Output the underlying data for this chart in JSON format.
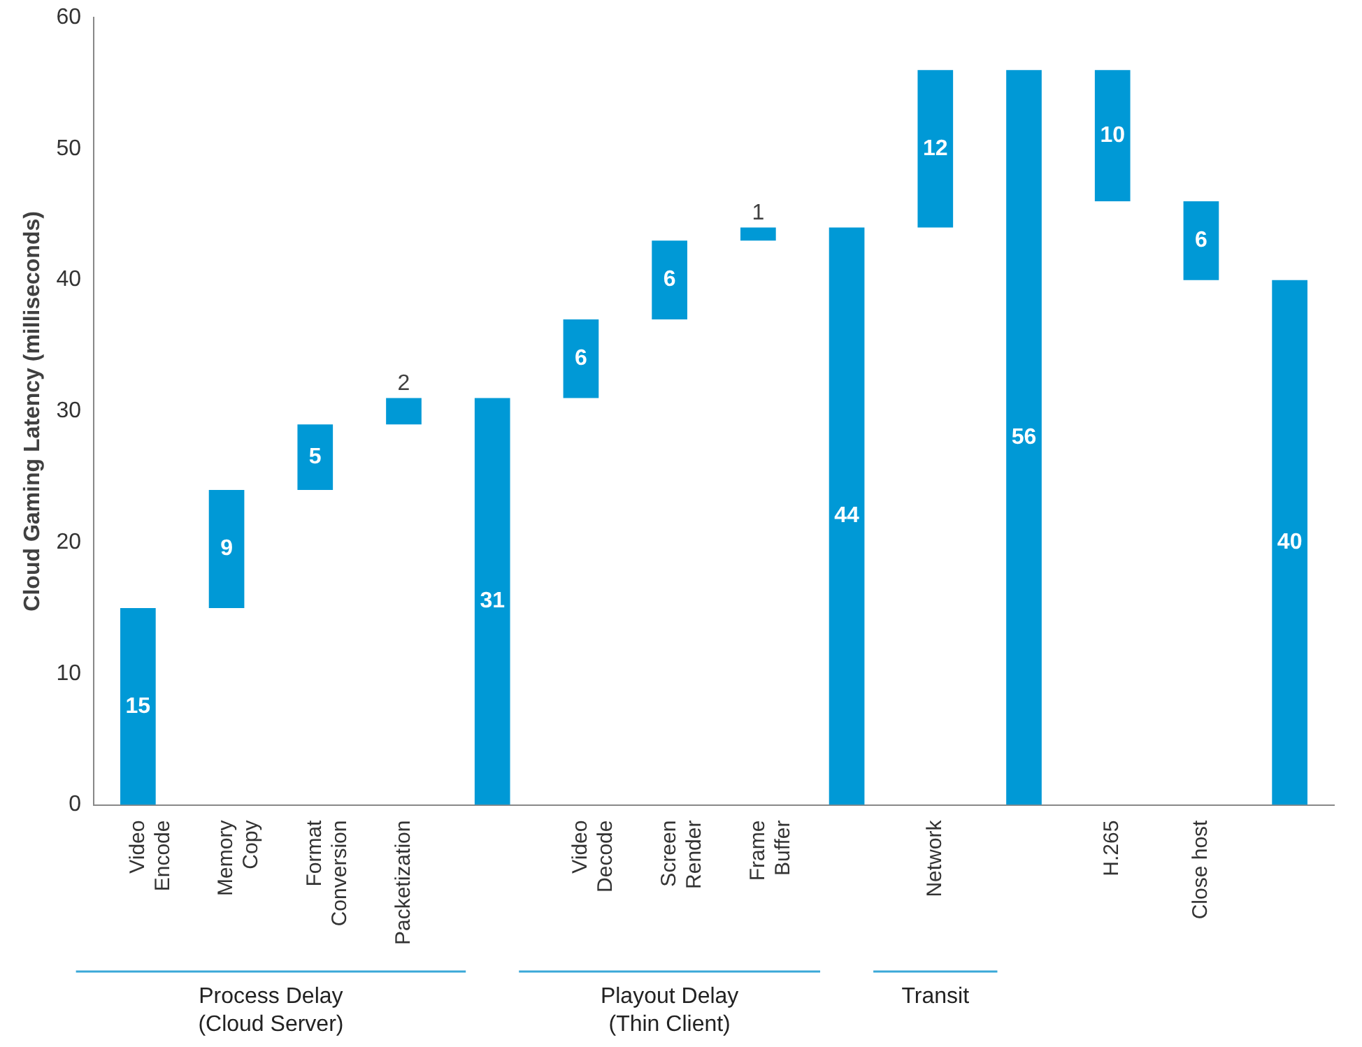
{
  "chart_data": {
    "type": "bar",
    "ylabel": "Cloud Gaming Latency (milliseconds)",
    "categories": [
      "Video Encode",
      "Memory Copy",
      "Format Conversion",
      "Packetization",
      null,
      "Video Decode",
      "Screen Render",
      "Frame Buffer",
      null,
      "Network",
      null,
      "H.265",
      "Close host",
      null
    ],
    "values": [
      15,
      9,
      5,
      2,
      31,
      6,
      6,
      1,
      44,
      12,
      56,
      10,
      6,
      40
    ],
    "base": [
      0,
      15,
      24,
      29,
      0,
      31,
      37,
      43,
      0,
      44,
      0,
      46,
      40,
      0
    ],
    "color": "#0099d6",
    "ylim": [
      0,
      60
    ],
    "yticks": [
      0,
      10,
      20,
      30,
      40,
      50,
      60
    ],
    "grid": false,
    "legend": false,
    "data_labels": true,
    "annotations": [
      "Process Delay\n(Cloud Server)",
      "Playout Delay\n(Thin Client)",
      "Transit"
    ]
  }
}
